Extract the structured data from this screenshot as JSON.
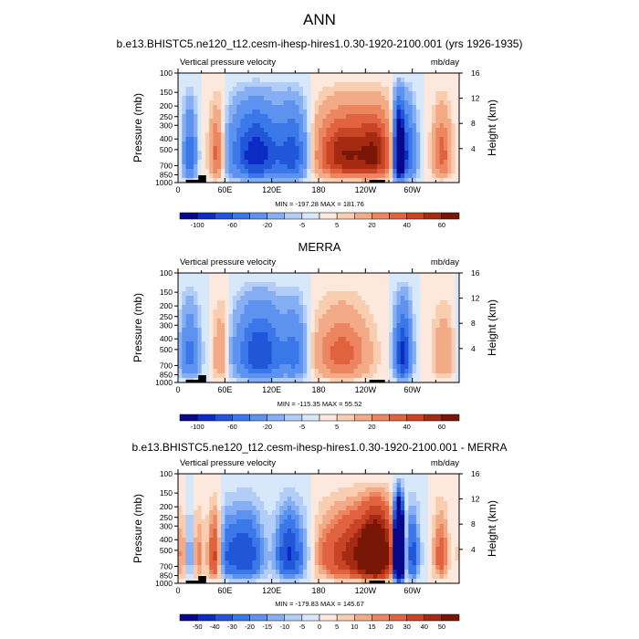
{
  "figure": {
    "main_title": "ANN"
  },
  "chart_data": [
    {
      "type": "heatmap",
      "title": "b.e13.BHISTC5.ne120_t12.cesm-ihesp-hires1.0.30-1920-2100.001 (yrs 1926-1935)",
      "left_label": "Vertical pressure velocity",
      "right_label": "mb/day",
      "ylabel": "Pressure (mb)",
      "y2label": "Height (km)",
      "xticks": [
        "0",
        "60E",
        "120E",
        "180",
        "120W",
        "60W"
      ],
      "yticks": [
        "100",
        "150",
        "200",
        "250",
        "300",
        "400",
        "500",
        "700",
        "850",
        "1000"
      ],
      "y2ticks": [
        "4",
        "8",
        "12",
        "16"
      ],
      "xlim": [
        0,
        360
      ],
      "ylim": [
        1000,
        100
      ],
      "minmax_text": "MIN = -197.28  MAX = 181.76",
      "min": -197.28,
      "max": 181.76,
      "colorbar_labels": [
        "-100",
        "-60",
        "-20",
        "-5",
        "5",
        "20",
        "40",
        "60"
      ]
    },
    {
      "type": "heatmap",
      "title": "MERRA",
      "left_label": "Vertical pressure velocity",
      "right_label": "mb/day",
      "ylabel": "Pressure (mb)",
      "y2label": "Height (km)",
      "xticks": [
        "0",
        "60E",
        "120E",
        "180",
        "120W",
        "60W"
      ],
      "yticks": [
        "100",
        "150",
        "200",
        "250",
        "300",
        "400",
        "500",
        "700",
        "850",
        "1000"
      ],
      "y2ticks": [
        "4",
        "8",
        "12",
        "16"
      ],
      "xlim": [
        0,
        360
      ],
      "ylim": [
        1000,
        100
      ],
      "minmax_text": "MIN = -115.35  MAX = 55.52",
      "min": -115.35,
      "max": 55.52,
      "colorbar_labels": [
        "-100",
        "-60",
        "-20",
        "-5",
        "5",
        "20",
        "40",
        "60"
      ]
    },
    {
      "type": "heatmap",
      "title": "b.e13.BHISTC5.ne120_t12.cesm-ihesp-hires1.0.30-1920-2100.001 - MERRA",
      "left_label": "Vertical pressure velocity",
      "right_label": "mb/day",
      "ylabel": "Pressure (mb)",
      "y2label": "Height (km)",
      "xticks": [
        "0",
        "60E",
        "120E",
        "180",
        "120W",
        "60W"
      ],
      "yticks": [
        "100",
        "150",
        "200",
        "250",
        "300",
        "400",
        "500",
        "700",
        "850",
        "1000"
      ],
      "y2ticks": [
        "4",
        "8",
        "12",
        "16"
      ],
      "xlim": [
        0,
        360
      ],
      "ylim": [
        1000,
        100
      ],
      "minmax_text": "MIN = -179.83  MAX = 145.67",
      "min": -179.83,
      "max": 145.67,
      "colorbar_labels": [
        "-50",
        "-40",
        "-30",
        "-20",
        "-15",
        "-10",
        "-5",
        "0",
        "5",
        "10",
        "15",
        "20",
        "30",
        "40",
        "50"
      ]
    }
  ],
  "colors": {
    "levels_abs": [
      "#08088a",
      "#0b2bc4",
      "#2156d8",
      "#3a78ea",
      "#5d93ef",
      "#86aef2",
      "#b2cdf6",
      "#d8e8fb",
      "#fce8dc",
      "#f8cdb0",
      "#f3aa86",
      "#ec8660",
      "#e0623e",
      "#c94425",
      "#a52a12",
      "#7a1606"
    ],
    "levels_diff": [
      "#08088a",
      "#0b2bc4",
      "#2156d8",
      "#3a78ea",
      "#5d93ef",
      "#86aef2",
      "#b2cdf6",
      "#d8e8fb",
      "#fce8dc",
      "#f8cdb0",
      "#f3aa86",
      "#ec8660",
      "#e0623e",
      "#c94425",
      "#a52a12",
      "#7a1606"
    ]
  }
}
